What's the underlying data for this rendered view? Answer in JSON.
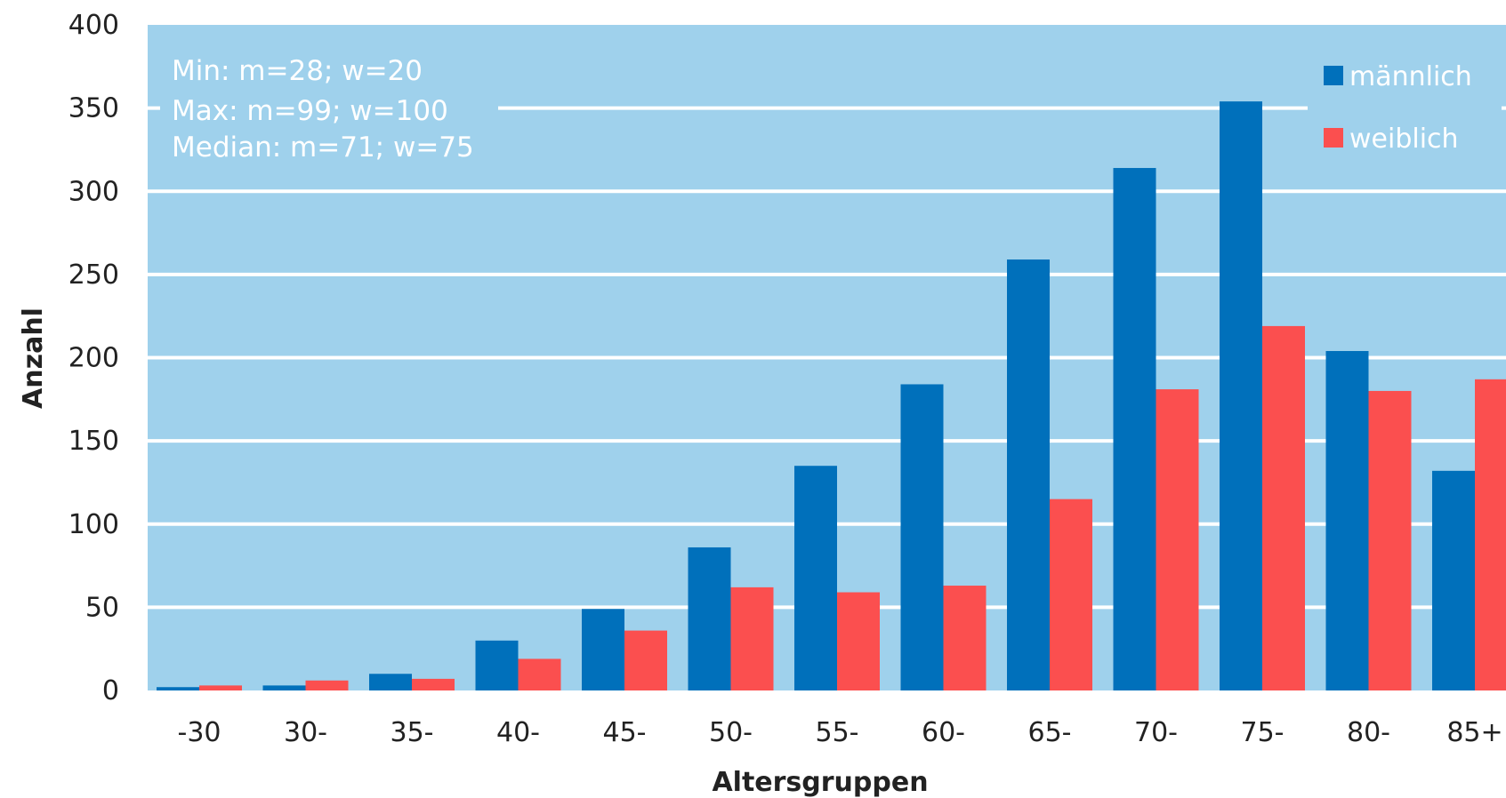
{
  "chart_data": {
    "type": "bar",
    "categories": [
      "-30",
      "30-",
      "35-",
      "40-",
      "45-",
      "50-",
      "55-",
      "60-",
      "65-",
      "70-",
      "75-",
      "80-",
      "85+"
    ],
    "series": [
      {
        "name": "männlich",
        "color": "#0070bb",
        "values": [
          2,
          3,
          10,
          30,
          49,
          86,
          135,
          184,
          259,
          314,
          354,
          204,
          132
        ]
      },
      {
        "name": "weiblich",
        "color": "#fb4f4f",
        "values": [
          3,
          6,
          7,
          19,
          36,
          62,
          59,
          63,
          115,
          181,
          219,
          180,
          187
        ]
      }
    ],
    "xlabel": "Altersgruppen",
    "ylabel": "Anzahl",
    "ylim": [
      0,
      400
    ],
    "yticks": [
      0,
      50,
      100,
      150,
      200,
      250,
      300,
      350,
      400
    ],
    "grid": true,
    "legend_position": "top-right",
    "plot_background": "#9fd1ec",
    "annotations": [
      "Min: m=28; w=20",
      "Max: m=99; w=100",
      "Median: m=71; w=75"
    ]
  }
}
